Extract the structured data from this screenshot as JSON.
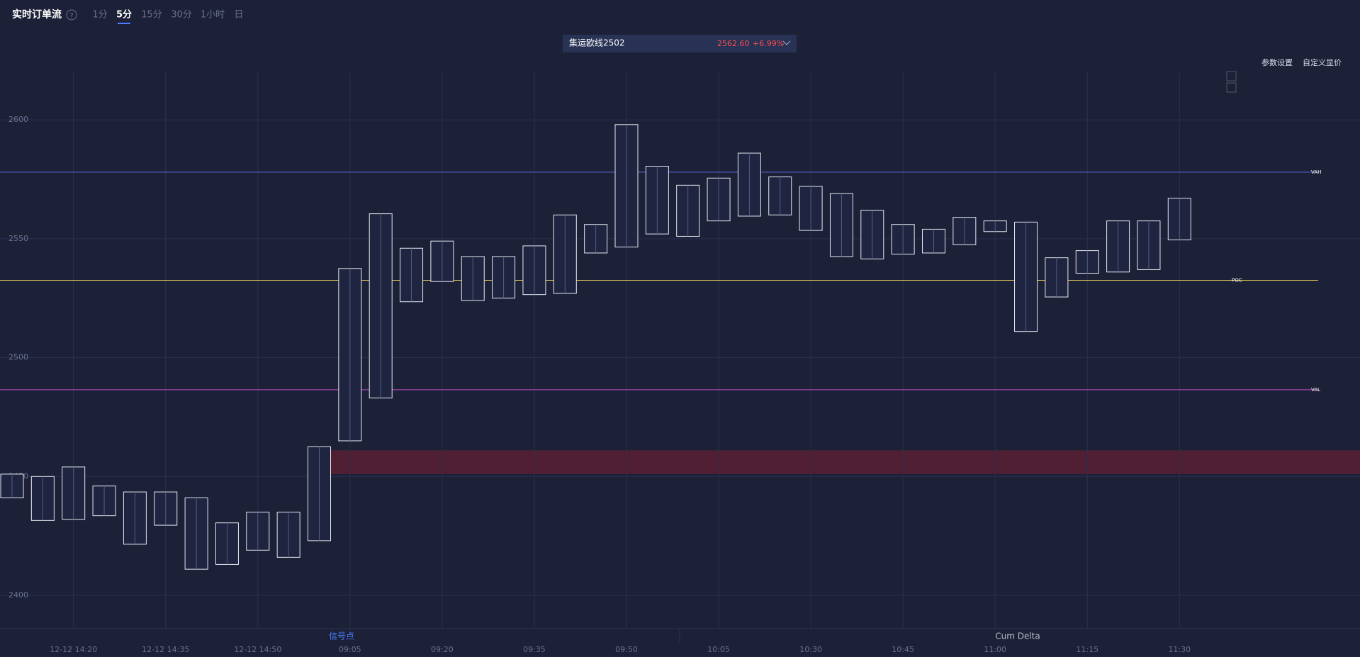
{
  "header": {
    "title": "实时订单流",
    "help": "?",
    "tabs": [
      "1分",
      "5分",
      "15分",
      "30分",
      "1小时",
      "日"
    ],
    "active_tab": 1,
    "symbol": "集运欧线2502",
    "price": "2562.60",
    "change": "+6.99%",
    "settings": "参数设置",
    "custom_price": "自定义显价"
  },
  "chart_data": {
    "type": "footprint",
    "categories": [
      null,
      null,
      "12-12 14:20",
      null,
      null,
      "12-12 14:35",
      null,
      null,
      "12-12 14:50",
      null,
      null,
      "09:05",
      null,
      null,
      "09:20",
      null,
      null,
      "09:35",
      null,
      null,
      "09:50",
      null,
      null,
      "10:05",
      null,
      null,
      "10:30",
      null,
      null,
      "10:45",
      null,
      null,
      "11:00",
      null,
      null,
      "11:15",
      null,
      null,
      "11:30"
    ],
    "candles": [
      {
        "high": 2451,
        "low": 2441
      },
      {
        "high": 2450,
        "low": 2431.5
      },
      {
        "high": 2454,
        "low": 2432
      },
      {
        "high": 2446,
        "low": 2433.5
      },
      {
        "high": 2443.5,
        "low": 2421.5
      },
      {
        "high": 2443.5,
        "low": 2429.5
      },
      {
        "high": 2441,
        "low": 2411
      },
      {
        "high": 2430.5,
        "low": 2413
      },
      {
        "high": 2435,
        "low": 2419
      },
      {
        "high": 2435,
        "low": 2416
      },
      {
        "high": 2462.5,
        "low": 2423
      },
      {
        "high": 2537.5,
        "low": 2465
      },
      {
        "high": 2560.5,
        "low": 2483
      },
      {
        "high": 2546,
        "low": 2523.5
      },
      {
        "high": 2549,
        "low": 2532
      },
      {
        "high": 2542.5,
        "low": 2524
      },
      {
        "high": 2542.5,
        "low": 2525
      },
      {
        "high": 2547,
        "low": 2526.5
      },
      {
        "high": 2560,
        "low": 2527
      },
      {
        "high": 2556,
        "low": 2544
      },
      {
        "high": 2598,
        "low": 2546.5
      },
      {
        "high": 2580.5,
        "low": 2552
      },
      {
        "high": 2572.5,
        "low": 2551
      },
      {
        "high": 2575.5,
        "low": 2557.5
      },
      {
        "high": 2586,
        "low": 2559.5
      },
      {
        "high": 2576,
        "low": 2560
      },
      {
        "high": 2572,
        "low": 2553.5
      },
      {
        "high": 2569,
        "low": 2542.5
      },
      {
        "high": 2562,
        "low": 2541.5
      },
      {
        "high": 2556,
        "low": 2543.5
      },
      {
        "high": 2554,
        "low": 2544
      },
      {
        "high": 2559,
        "low": 2547.5
      },
      {
        "high": 2557.5,
        "low": 2553
      },
      {
        "high": 2557,
        "low": 2511
      },
      {
        "high": 2542,
        "low": 2525.5
      },
      {
        "high": 2545,
        "low": 2535.5
      },
      {
        "high": 2557.5,
        "low": 2536
      },
      {
        "high": 2557.5,
        "low": 2537
      },
      {
        "high": 2567,
        "low": 2549.5
      }
    ],
    "ylim": [
      2386,
      2620
    ],
    "yticks": [
      2400,
      2450,
      2500,
      2550,
      2600
    ],
    "grid": true,
    "levels": [
      {
        "label": "VAH",
        "value": 2578,
        "color": "#5a6bd6"
      },
      {
        "label": "POC",
        "value": 2532.5,
        "color": "#d8c25a"
      },
      {
        "label": "VAL",
        "value": 2486.5,
        "color": "#c04fc0"
      }
    ],
    "zone": {
      "from": 2451,
      "to": 2461,
      "color": "#5a1f33"
    },
    "panels": [
      "信号点",
      "Cum Delta"
    ]
  }
}
